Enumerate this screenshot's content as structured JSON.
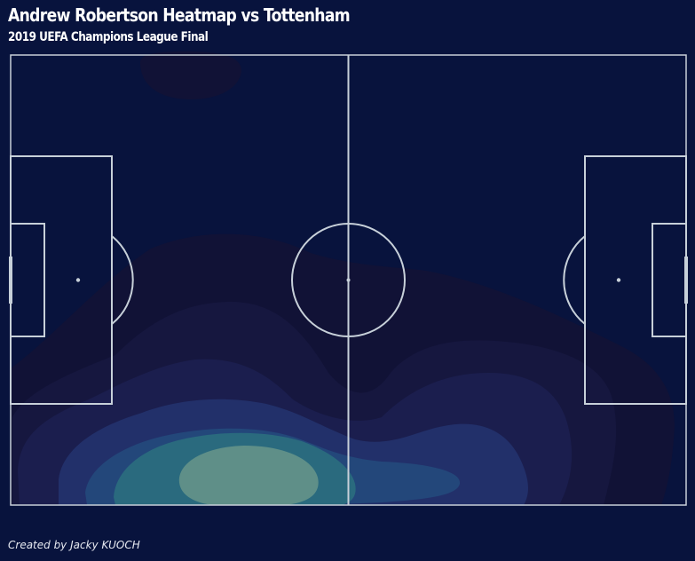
{
  "header": {
    "title": "Andrew Robertson Heatmap vs Tottenham",
    "subtitle": "2019 UEFA Champions League Final"
  },
  "footer": {
    "credit": "Created by Jacky KUOCH"
  },
  "colors": {
    "background": "#08133d",
    "pitch_lines": "#c7d0d9",
    "density_levels": [
      "#111236",
      "#16173f",
      "#1b1e4e",
      "#22306a",
      "#23477a",
      "#2a6a7e",
      "#5f8f88"
    ]
  },
  "chart_data": {
    "type": "heatmap",
    "subtype": "kernel-density-on-football-pitch",
    "player": "Andrew Robertson",
    "opponent": "Tottenham",
    "pitch": {
      "length": 120,
      "width": 80,
      "orientation": "horizontal"
    },
    "levels": 7,
    "hotspots": [
      {
        "x": 42,
        "y": 76,
        "intensity": 1.0
      },
      {
        "x": 30,
        "y": 72,
        "intensity": 0.7
      },
      {
        "x": 90,
        "y": 74,
        "intensity": 0.45
      },
      {
        "x": 32,
        "y": 3,
        "intensity": 0.25
      }
    ],
    "grid": false,
    "legend": "none"
  }
}
